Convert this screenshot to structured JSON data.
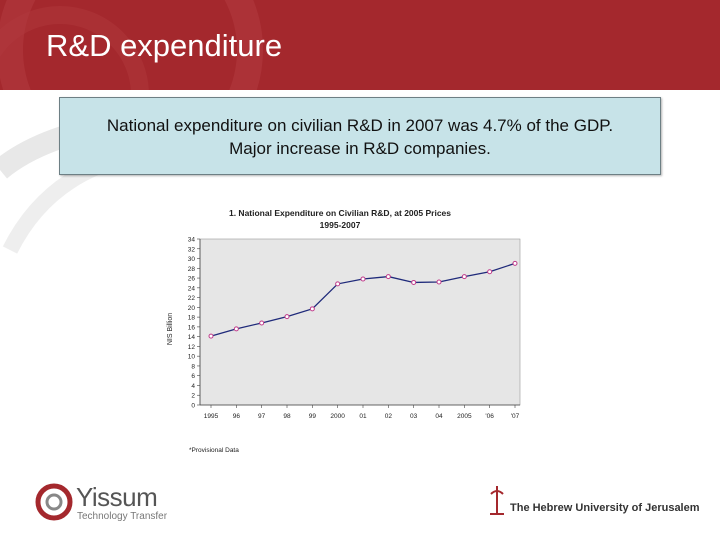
{
  "slide": {
    "title": "R&D expenditure",
    "callout_line1": "National expenditure on civilian R&D in 2007 was 4.7% of the GDP.",
    "callout_line2": "Major increase in R&D companies."
  },
  "colors": {
    "header": "#a4282d",
    "callout_bg": "#c7e3e8",
    "series_line": "#1f2a7a",
    "marker": "#c03a8a",
    "plot_bg": "#e6e6e6"
  },
  "footer": {
    "left_logo_name": "Yissum",
    "left_logo_sub": "Technology Transfer",
    "right_logo_text": "The Hebrew University of Jerusalem"
  },
  "chart_data": {
    "type": "line",
    "title": "1. National Expenditure on Civilian R&D, at 2005 Prices",
    "subtitle": "1995-2007",
    "ylabel": "NIS Billion",
    "xlabel": "",
    "note": "*Provisional Data",
    "ylim": [
      0,
      34
    ],
    "yticks": [
      0,
      2,
      4,
      6,
      8,
      10,
      12,
      14,
      16,
      18,
      20,
      22,
      24,
      26,
      28,
      30,
      32,
      34
    ],
    "categories": [
      "1995",
      "96",
      "97",
      "98",
      "99",
      "2000",
      "01",
      "02",
      "03",
      "04",
      "2005",
      "'06",
      "'07"
    ],
    "grid": false,
    "legend": "none",
    "values": [
      14.1,
      15.6,
      16.8,
      18.1,
      19.7,
      24.8,
      25.8,
      26.3,
      25.1,
      25.2,
      26.3,
      27.3,
      29.0
    ]
  }
}
